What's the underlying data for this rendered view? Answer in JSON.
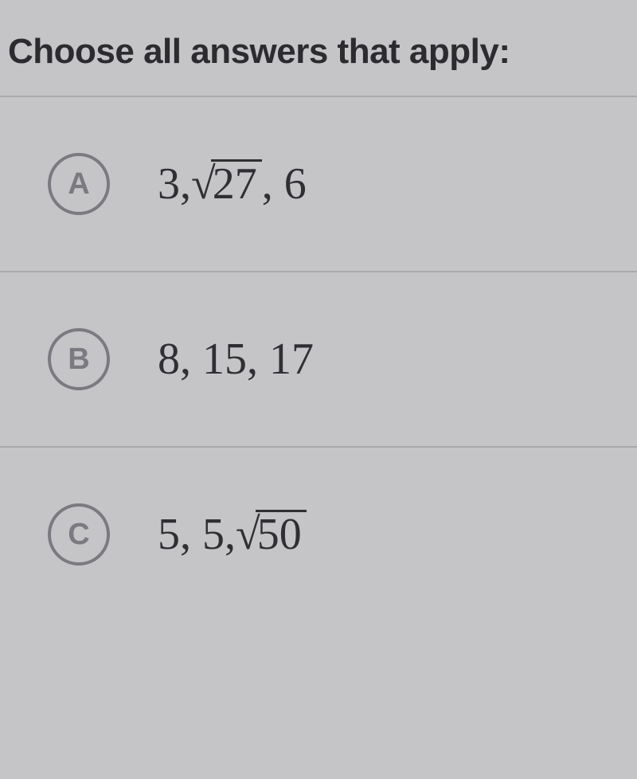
{
  "prompt": "Choose all answers that apply:",
  "options": [
    {
      "letter": "A",
      "pre": "3, ",
      "sqrt": "27",
      "post": ", 6"
    },
    {
      "letter": "B",
      "text": "8, 15, 17"
    },
    {
      "letter": "C",
      "pre": "5, 5, ",
      "sqrt": "50",
      "post": ""
    }
  ],
  "style": {
    "background": "#c5c5c7",
    "text_color": "#2f2f33",
    "circle_border": "#7a7a80",
    "divider": "#a9a9ad",
    "prompt_fontsize": 44,
    "option_fontsize": 56,
    "circle_letter_fontsize": 38
  }
}
